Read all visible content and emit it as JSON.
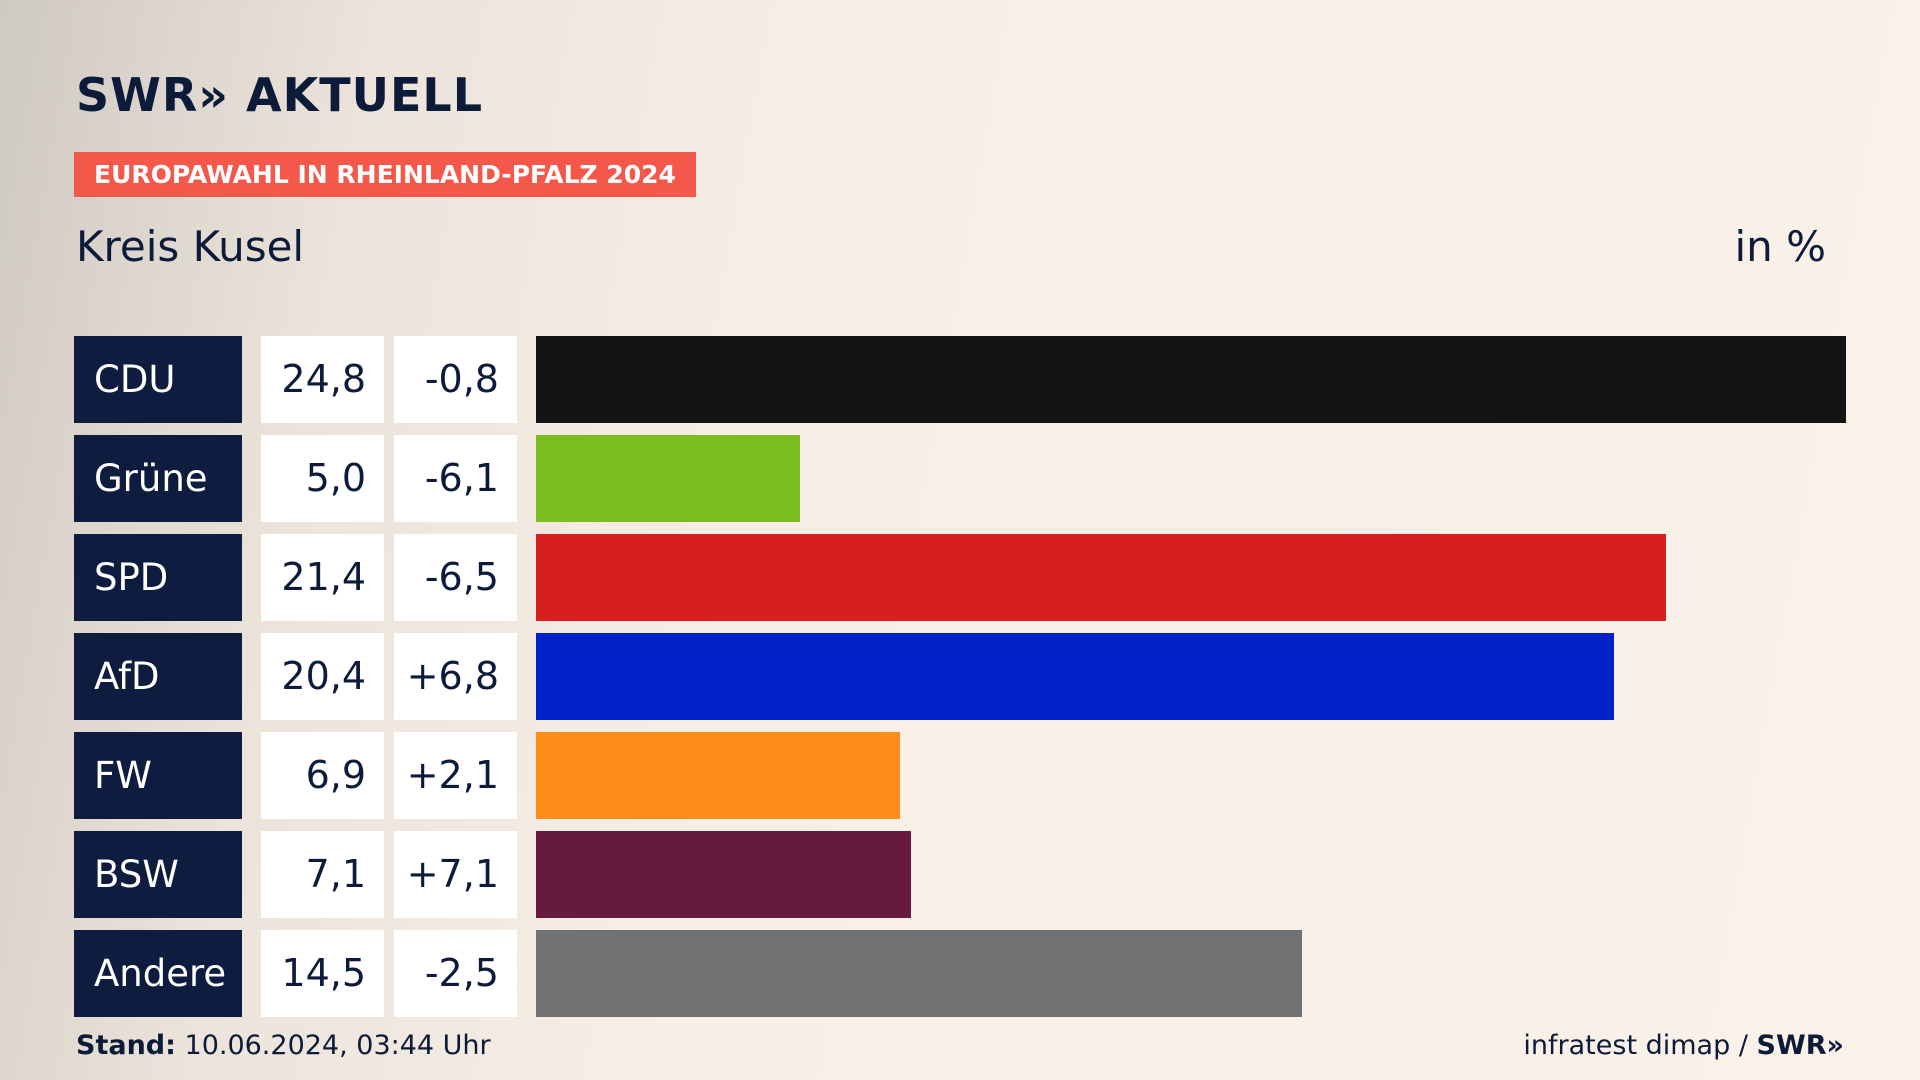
{
  "brand": {
    "logo_text": "SWR» AKTUELL"
  },
  "banner": {
    "text": "EUROPAWAHL IN RHEINLAND-PFALZ 2024"
  },
  "subtitle": "Kreis Kusel",
  "unit": "in %",
  "footer": {
    "stand_label": "Stand:",
    "stand_value": "10.06.2024, 03:44 Uhr",
    "source": "infratest dimap /",
    "source_logo": "SWR»"
  },
  "chart_data": {
    "type": "bar",
    "orientation": "horizontal",
    "categories": [
      "CDU",
      "Grüne",
      "SPD",
      "AfD",
      "FW",
      "BSW",
      "Andere"
    ],
    "values": [
      24.8,
      5.0,
      21.4,
      20.4,
      6.9,
      7.1,
      14.5
    ],
    "value_labels": [
      "24,8",
      "5,0",
      "21,4",
      "20,4",
      "6,9",
      "7,1",
      "14,5"
    ],
    "change_labels": [
      "-0,8",
      "-6,1",
      "-6,5",
      "+6,8",
      "+2,1",
      "+7,1",
      "-2,5"
    ],
    "changes": [
      -0.8,
      -6.1,
      -6.5,
      6.8,
      2.1,
      7.1,
      -2.5
    ],
    "colors": [
      "#141414",
      "#7bbd1e",
      "#d71f20",
      "#0021c8",
      "#fb8c1a",
      "#661a40",
      "#6f7173"
    ],
    "max_value": 24.8,
    "title": "Kreis Kusel",
    "xlabel": "",
    "ylabel": "",
    "grid": false
  }
}
